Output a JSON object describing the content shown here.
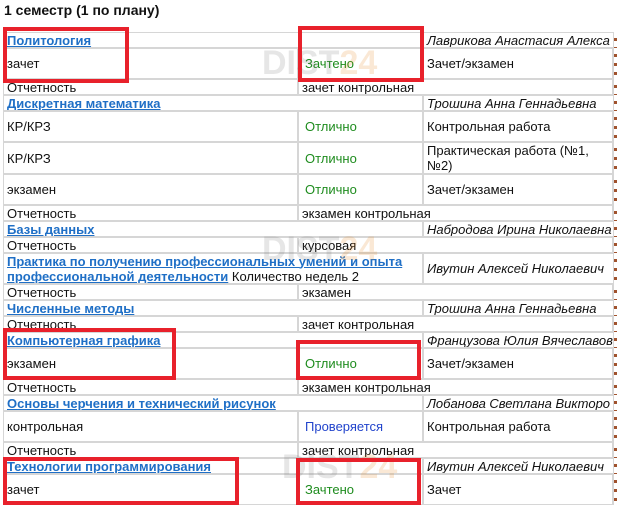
{
  "header": {
    "title": "1 семестр (1 по плану)"
  },
  "watermark": {
    "left": "DIST",
    "right": "24"
  },
  "table": {
    "rows": [
      {
        "course": "Политология",
        "teacher": "Лаврикова Анастасия Алекса"
      },
      {
        "cells": [
          "зачет",
          "Зачтено",
          "Зачет/экзамен"
        ],
        "color": "#1e8c1e"
      },
      {
        "report": [
          "Отчетность",
          "зачет контрольная"
        ]
      },
      {
        "course": "Дискретная математика",
        "teacher": "Трошина Анна Геннадьевна"
      },
      {
        "cells": [
          "КР/КРЗ",
          "Отлично",
          "Контрольная работа"
        ],
        "color": "#1e8c1e"
      },
      {
        "cells": [
          "КР/КРЗ",
          "Отлично",
          "Практическая работа (№1, №2)"
        ],
        "color": "#1e8c1e"
      },
      {
        "cells": [
          "экзамен",
          "Отлично",
          "Зачет/экзамен"
        ],
        "color": "#1e8c1e"
      },
      {
        "report": [
          "Отчетность",
          "экзамен контрольная"
        ]
      },
      {
        "course": "Базы данных",
        "teacher": "Набродова Ирина Николаевна"
      },
      {
        "report": [
          "Отчетность",
          "курсовая"
        ]
      },
      {
        "course": "Практика по получению профессиональных умений и опыта профессиональной деятельности",
        "note": "Количество недель 2",
        "teacher": "Ивутин Алексей Николаевич"
      },
      {
        "report": [
          "Отчетность",
          "экзамен"
        ]
      },
      {
        "course": "Численные методы",
        "teacher": "Трошина Анна Геннадьевна"
      },
      {
        "report": [
          "Отчетность",
          "зачет контрольная"
        ]
      },
      {
        "course": "Компьютерная графика",
        "teacher": "Французова Юлия Вячеславов"
      },
      {
        "cells": [
          "экзамен",
          "Отлично",
          "Зачет/экзамен"
        ],
        "color": "#1e8c1e"
      },
      {
        "report": [
          "Отчетность",
          "экзамен контрольная"
        ]
      },
      {
        "course": "Основы черчения и технический рисунок",
        "teacher": "Лобанова Светлана Викторо"
      },
      {
        "cells": [
          "контрольная",
          "Проверяется",
          "Контрольная работа"
        ],
        "color": "#2244cc"
      },
      {
        "report": [
          "Отчетность",
          "зачет контрольная"
        ]
      },
      {
        "course": "Технологии программирования",
        "teacher": "Ивутин Алексей Николаевич"
      },
      {
        "cells": [
          "зачет",
          "Зачтено",
          "Зачет"
        ],
        "color": "#1e8c1e"
      }
    ]
  }
}
